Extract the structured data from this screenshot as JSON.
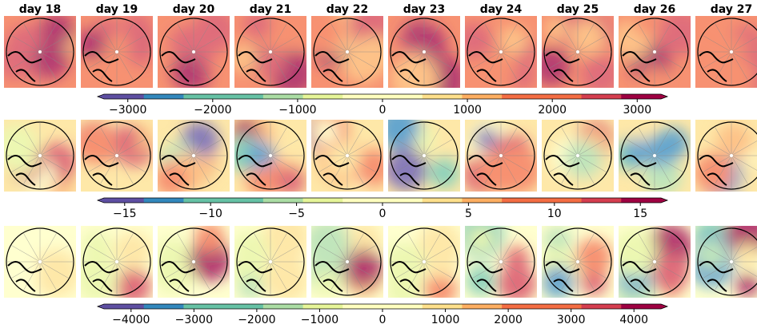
{
  "columns": [
    "day 18",
    "day 19",
    "day 20",
    "day 21",
    "day 22",
    "day 23",
    "day 24",
    "day 25",
    "day 26",
    "day 27"
  ],
  "colorbars": [
    {
      "lim": [
        -3280,
        3280
      ],
      "ticks": [
        {
          "value": -3000,
          "label": "−3000"
        },
        {
          "value": -2000,
          "label": "−2000"
        },
        {
          "value": -1000,
          "label": "−1000"
        },
        0,
        1000,
        2000,
        3000
      ]
    },
    {
      "lim": [
        -16.2,
        16.2
      ],
      "ticks": [
        {
          "value": -15,
          "label": "−15"
        },
        {
          "value": -10,
          "label": "−10"
        },
        {
          "value": -5,
          "label": "−5"
        },
        0,
        5,
        10,
        15
      ]
    },
    {
      "lim": [
        -4430,
        4430
      ],
      "ticks": [
        {
          "value": -4000,
          "label": "−4000"
        },
        {
          "value": -3000,
          "label": "−3000"
        },
        {
          "value": -2000,
          "label": "−2000"
        },
        {
          "value": -1000,
          "label": "−1000"
        },
        0,
        1000,
        2000,
        3000,
        4000
      ]
    }
  ]
}
